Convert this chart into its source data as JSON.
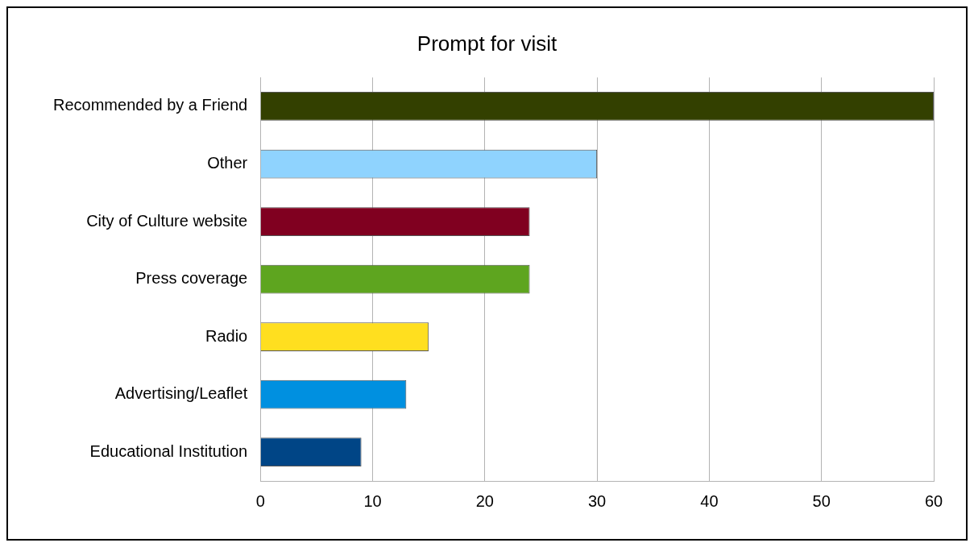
{
  "chart_data": {
    "type": "bar",
    "title": "Prompt for visit",
    "orientation": "horizontal",
    "categories": [
      "Recommended by a Friend",
      "Other",
      "City of Culture website",
      "Press coverage",
      "Radio",
      "Advertising/Leaflet",
      "Educational Institution"
    ],
    "values": [
      60,
      30,
      24,
      24,
      15,
      13,
      9
    ],
    "colors": [
      "#334000",
      "#8fd3fe",
      "#800020",
      "#5ea51f",
      "#ffdf1f",
      "#0090e0",
      "#004586"
    ],
    "xlim": [
      0,
      60
    ],
    "xticks": [
      0,
      10,
      20,
      30,
      40,
      50,
      60
    ],
    "grid": "x",
    "legend": false
  }
}
